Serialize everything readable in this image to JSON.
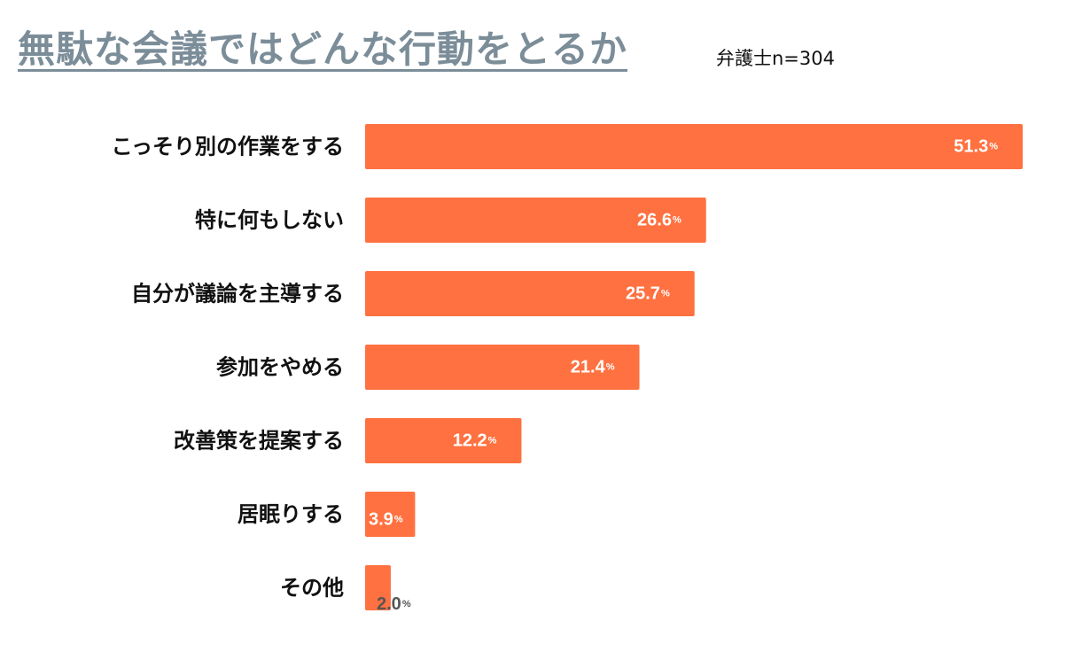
{
  "chart_data": {
    "type": "bar",
    "orientation": "horizontal",
    "title": "無駄な会議ではどんな行動をとるか",
    "subtitle": "弁護士n=304",
    "categories": [
      "こっそり別の作業をする",
      "特に何もしない",
      "自分が議論を主導する",
      "参加をやめる",
      "改善策を提案する",
      "居眠りする",
      "その他"
    ],
    "values": [
      51.3,
      26.6,
      25.7,
      21.4,
      12.2,
      3.9,
      2.0
    ],
    "value_labels": [
      "51.3",
      "26.6",
      "25.7",
      "21.4",
      "12.2",
      "3.9",
      "2.0"
    ],
    "unit": "%",
    "xlim": [
      0,
      51.3
    ],
    "grid": false,
    "colors": {
      "bar": "#ff7140",
      "label_inside": "#ffffff",
      "label_outside": "#555555",
      "title": "#7b8d98"
    }
  }
}
